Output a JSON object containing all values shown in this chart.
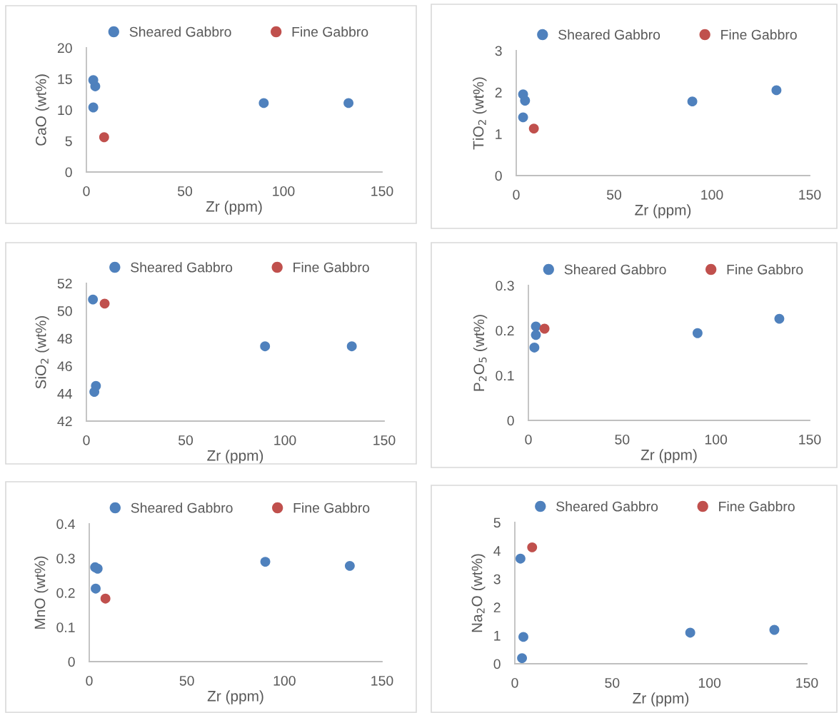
{
  "chart_data": [
    {
      "type": "scatter",
      "xlabel": "Zr (ppm)",
      "ylabel": "CaO (wt%)",
      "xlim": [
        0,
        150
      ],
      "xticks": [
        0,
        50,
        100,
        150
      ],
      "ylim": [
        0,
        20
      ],
      "yticks": [
        0,
        5,
        10,
        15,
        20
      ],
      "legend": "top",
      "marker": "circle",
      "grid": false,
      "series": [
        {
          "name": "Sheared Gabbro",
          "color": "#4f81bd",
          "x": [
            3.5,
            4.5,
            3.5,
            90,
            133
          ],
          "values": [
            14.8,
            13.8,
            10.4,
            11.1,
            11.1
          ]
        },
        {
          "name": "Fine Gabbro",
          "color": "#c0504d",
          "x": [
            9
          ],
          "values": [
            5.6
          ]
        }
      ]
    },
    {
      "type": "scatter",
      "xlabel": "Zr (ppm)",
      "ylabel": "TiO$_{2}$ (wt%)",
      "xlim": [
        0,
        150
      ],
      "xticks": [
        0,
        50,
        100,
        150
      ],
      "ylim": [
        0,
        3
      ],
      "yticks": [
        0,
        1,
        2,
        3
      ],
      "legend": "top",
      "marker": "circle",
      "grid": false,
      "series": [
        {
          "name": "Sheared Gabbro",
          "color": "#4f81bd",
          "x": [
            3.5,
            4.5,
            3.5,
            90,
            133
          ],
          "values": [
            1.95,
            1.8,
            1.4,
            1.78,
            2.05
          ]
        },
        {
          "name": "Fine Gabbro",
          "color": "#c0504d",
          "x": [
            9
          ],
          "values": [
            1.13
          ]
        }
      ]
    },
    {
      "type": "scatter",
      "xlabel": "Zr (ppm)",
      "ylabel": "SiO$_{2}$ (wt%)",
      "xlim": [
        0,
        150
      ],
      "xticks": [
        0,
        50,
        100,
        150
      ],
      "ylim": [
        42,
        52
      ],
      "yticks": [
        42,
        44,
        46,
        48,
        50,
        52
      ],
      "legend": "top",
      "marker": "circle",
      "grid": false,
      "series": [
        {
          "name": "Sheared Gabbro",
          "color": "#4f81bd",
          "x": [
            3.3,
            4.8,
            4,
            90,
            133.7
          ],
          "values": [
            50.83,
            44.55,
            44.12,
            47.43,
            47.43
          ]
        },
        {
          "name": "Fine Gabbro",
          "color": "#c0504d",
          "x": [
            9.2
          ],
          "values": [
            50.53
          ]
        }
      ]
    },
    {
      "type": "scatter",
      "xlabel": "Zr (ppm)",
      "ylabel": "P$_{2}$O$_{5}$ (wt%)",
      "xlim": [
        0,
        150
      ],
      "xticks": [
        0,
        50,
        100,
        150
      ],
      "ylim": [
        0,
        0.3
      ],
      "yticks": [
        0,
        0.1,
        0.2,
        0.3
      ],
      "legend": "top",
      "marker": "circle",
      "grid": false,
      "series": [
        {
          "name": "Sheared Gabbro",
          "color": "#4f81bd",
          "x": [
            4,
            4,
            3.2,
            90.2,
            133.8
          ],
          "values": [
            0.209,
            0.19,
            0.162,
            0.194,
            0.226
          ]
        },
        {
          "name": "Fine Gabbro",
          "color": "#c0504d",
          "x": [
            8.6
          ],
          "values": [
            0.204
          ]
        }
      ]
    },
    {
      "type": "scatter",
      "xlabel": "Zr (ppm)",
      "ylabel": "MnO (wt%)",
      "xlim": [
        0,
        150
      ],
      "xticks": [
        0,
        50,
        100,
        150
      ],
      "ylim": [
        0,
        0.4
      ],
      "yticks": [
        0,
        0.1,
        0.2,
        0.3,
        0.4
      ],
      "legend": "top",
      "marker": "circle",
      "grid": false,
      "series": [
        {
          "name": "Sheared Gabbro",
          "color": "#4f81bd",
          "x": [
            3,
            4.3,
            3.3,
            90.2,
            133.5
          ],
          "values": [
            0.274,
            0.27,
            0.212,
            0.29,
            0.278
          ]
        },
        {
          "name": "Fine Gabbro",
          "color": "#c0504d",
          "x": [
            8.3
          ],
          "values": [
            0.183
          ]
        }
      ]
    },
    {
      "type": "scatter",
      "xlabel": "Zr (ppm)",
      "ylabel": "Na$_{2}$O (wt%)",
      "xlim": [
        0,
        150
      ],
      "xticks": [
        0,
        50,
        100,
        150
      ],
      "ylim": [
        0,
        5
      ],
      "yticks": [
        0,
        1,
        2,
        3,
        4,
        5
      ],
      "legend": "top",
      "marker": "circle",
      "grid": false,
      "series": [
        {
          "name": "Sheared Gabbro",
          "color": "#4f81bd",
          "x": [
            2.9,
            4.4,
            3.7,
            90.1,
            133.3
          ],
          "values": [
            3.72,
            0.95,
            0.2,
            1.1,
            1.2
          ]
        },
        {
          "name": "Fine Gabbro",
          "color": "#c0504d",
          "x": [
            8.9
          ],
          "values": [
            4.12
          ]
        }
      ]
    }
  ]
}
